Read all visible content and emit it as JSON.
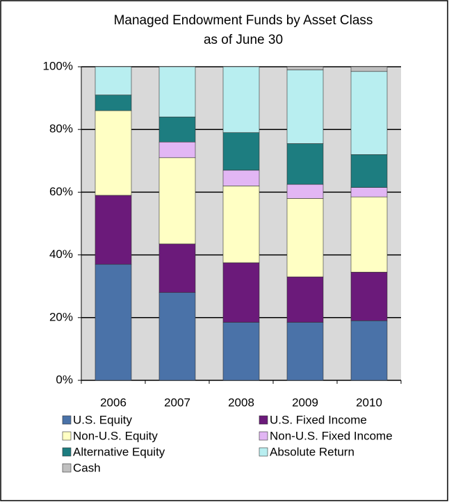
{
  "chart_data": {
    "type": "stacked_bar",
    "title": "Managed Endowment Funds by Asset Class",
    "subtitle": "as of June 30",
    "categories": [
      "2006",
      "2007",
      "2008",
      "2009",
      "2010"
    ],
    "series": [
      {
        "name": "U.S. Equity",
        "color": "#4a72a8",
        "values": [
          37,
          28,
          18.5,
          18.5,
          19
        ]
      },
      {
        "name": "U.S. Fixed Income",
        "color": "#6b1a7a",
        "values": [
          22,
          15.5,
          19,
          14.5,
          15.5
        ]
      },
      {
        "name": "Non-U.S. Equity",
        "color": "#ffffc4",
        "values": [
          27,
          27.5,
          24.5,
          25,
          24
        ]
      },
      {
        "name": "Non-U.S. Fixed Income",
        "color": "#e2b6f4",
        "values": [
          0,
          5,
          5,
          4.5,
          3
        ]
      },
      {
        "name": "Alternative Equity",
        "color": "#1d7d80",
        "values": [
          5,
          8,
          12,
          13,
          10.5
        ]
      },
      {
        "name": "Absolute Return",
        "color": "#b8eef0",
        "values": [
          9,
          16,
          21,
          23.5,
          26.5
        ]
      },
      {
        "name": "Cash",
        "color": "#c0c0c0",
        "values": [
          0,
          0,
          0,
          1,
          1.5
        ]
      }
    ],
    "ylim": [
      0,
      100
    ],
    "yticks": [
      {
        "value": 0,
        "label": "0%"
      },
      {
        "value": 20,
        "label": "20%"
      },
      {
        "value": 40,
        "label": "40%"
      },
      {
        "value": 60,
        "label": "60%"
      },
      {
        "value": 80,
        "label": "80%"
      },
      {
        "value": 100,
        "label": "100%"
      }
    ],
    "grid": true,
    "legend": "bottom"
  }
}
